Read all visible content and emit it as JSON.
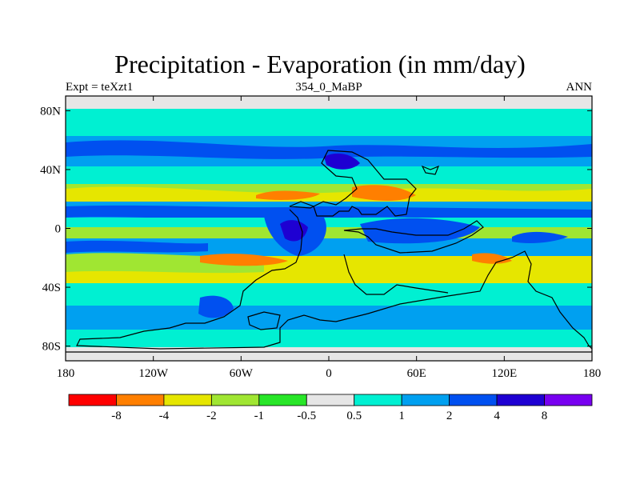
{
  "title": "Precipitation - Evaporation (in mm/day)",
  "subtitle_left": "Expt = teXzt1",
  "subtitle_center": "354_0_MaBP",
  "subtitle_right": "ANN",
  "map": {
    "lon_range": [
      -180,
      180
    ],
    "lat_range": [
      -90,
      90
    ],
    "x_ticks": [
      {
        "value": -180,
        "label": "180"
      },
      {
        "value": -120,
        "label": "120W"
      },
      {
        "value": -60,
        "label": "60W"
      },
      {
        "value": 0,
        "label": "0"
      },
      {
        "value": 60,
        "label": "60E"
      },
      {
        "value": 120,
        "label": "120E"
      },
      {
        "value": 180,
        "label": "180"
      }
    ],
    "y_ticks": [
      {
        "value": 80,
        "label": "80N"
      },
      {
        "value": 40,
        "label": "40N"
      },
      {
        "value": 0,
        "label": "0"
      },
      {
        "value": -40,
        "label": "40S"
      },
      {
        "value": -80,
        "label": "80S"
      }
    ]
  },
  "colorbar": {
    "colors": [
      "#ff0000",
      "#ff7f00",
      "#e6e600",
      "#a0e632",
      "#28e628",
      "#e6e6e6",
      "#00f0d2",
      "#00a0f0",
      "#0050f0",
      "#1e00d2",
      "#7800f0"
    ],
    "labels": [
      "-8",
      "-4",
      "-2",
      "-1",
      "-0.5",
      "0.5",
      "1",
      "2",
      "4",
      "8"
    ]
  }
}
